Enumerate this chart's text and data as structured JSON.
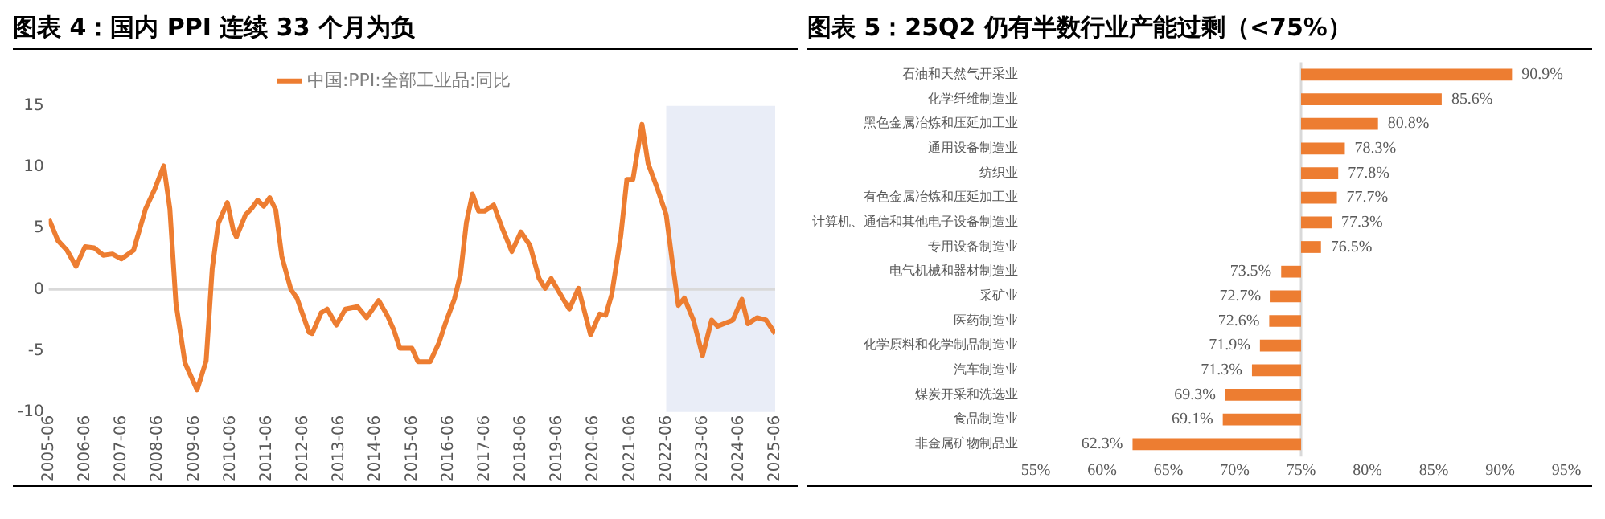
{
  "chart_data": [
    {
      "type": "line",
      "title": "图表 4：国内 PPI 连续 33 个月为负",
      "x": [
        "2005-06",
        "2005-09",
        "2005-12",
        "2006-03",
        "2006-06",
        "2006-09",
        "2006-12",
        "2007-03",
        "2007-06",
        "2007-10",
        "2008-02",
        "2008-05",
        "2008-08",
        "2008-10",
        "2008-12",
        "2009-03",
        "2009-07",
        "2009-10",
        "2009-12",
        "2010-02",
        "2010-05",
        "2010-07",
        "2010-08",
        "2010-11",
        "2011-01",
        "2011-03",
        "2011-05",
        "2011-07",
        "2011-09",
        "2011-11",
        "2012-02",
        "2012-04",
        "2012-08",
        "2012-09",
        "2012-12",
        "2013-02",
        "2013-05",
        "2013-08",
        "2013-12",
        "2014-03",
        "2014-07",
        "2014-10",
        "2014-12",
        "2015-02",
        "2015-06",
        "2015-08",
        "2015-12",
        "2016-03",
        "2016-05",
        "2016-08",
        "2016-10",
        "2016-12",
        "2017-02",
        "2017-04",
        "2017-06",
        "2017-09",
        "2017-12",
        "2018-03",
        "2018-06",
        "2018-09",
        "2018-12",
        "2019-02",
        "2019-04",
        "2019-08",
        "2019-10",
        "2020-01",
        "2020-05",
        "2020-08",
        "2020-10",
        "2020-12",
        "2021-03",
        "2021-05",
        "2021-07",
        "2021-10",
        "2021-12",
        "2022-03",
        "2022-06",
        "2022-08",
        "2022-10",
        "2022-12",
        "2023-03",
        "2023-06",
        "2023-09",
        "2023-11",
        "2024-02",
        "2024-04",
        "2024-07",
        "2024-09",
        "2024-12",
        "2025-03",
        "2025-06"
      ],
      "series": [
        {
          "name": "中国:PPI:全部工业品:同比",
          "color": "#ed7d31",
          "values": [
            5.8,
            4.0,
            3.2,
            1.9,
            3.5,
            3.4,
            2.8,
            2.9,
            2.5,
            3.2,
            6.6,
            8.2,
            10.1,
            6.6,
            -1.1,
            -6.0,
            -8.2,
            -5.8,
            1.7,
            5.4,
            7.1,
            4.8,
            4.3,
            6.1,
            6.6,
            7.3,
            6.8,
            7.5,
            6.5,
            2.7,
            0.0,
            -0.7,
            -3.5,
            -3.6,
            -1.9,
            -1.6,
            -2.9,
            -1.6,
            -1.4,
            -2.3,
            -0.9,
            -2.2,
            -3.3,
            -4.8,
            -4.8,
            -5.9,
            -5.9,
            -4.3,
            -2.8,
            -0.8,
            1.2,
            5.5,
            7.8,
            6.4,
            6.4,
            6.9,
            4.9,
            3.1,
            4.7,
            3.6,
            0.9,
            0.1,
            0.9,
            -0.8,
            -1.6,
            0.1,
            -3.7,
            -2.0,
            -2.1,
            -0.4,
            4.4,
            9.0,
            9.0,
            13.5,
            10.3,
            8.3,
            6.1,
            2.3,
            -1.3,
            -0.7,
            -2.5,
            -5.4,
            -2.5,
            -3.0,
            -2.7,
            -2.5,
            -0.8,
            -2.8,
            -2.3,
            -2.5,
            -3.6
          ]
        }
      ],
      "xlim": [
        "2005-06",
        "2025-06"
      ],
      "xticks": [
        "2005-06",
        "2006-06",
        "2007-06",
        "2008-06",
        "2009-06",
        "2010-06",
        "2011-06",
        "2012-06",
        "2013-06",
        "2014-06",
        "2015-06",
        "2016-06",
        "2017-06",
        "2018-06",
        "2019-06",
        "2020-06",
        "2021-06",
        "2022-06",
        "2023-06",
        "2024-06",
        "2025-06"
      ],
      "ylim": [
        -10,
        15
      ],
      "yticks": [
        -10,
        -5,
        0,
        5,
        10,
        15
      ],
      "bands": [
        {
          "axis": "x",
          "from": "2022-06",
          "to": "2025-06",
          "color": "#e9edf7"
        }
      ],
      "ref_lines": [
        {
          "axis": "y",
          "value": 0,
          "color": "#d9d9d9"
        }
      ],
      "legend": "top",
      "grid": false
    },
    {
      "type": "bar",
      "title": "图表 5：25Q2 仍有半数行业产能过剩（<75%）",
      "orientation": "horizontal",
      "categories": [
        "石油和天然气开采业",
        "化学纤维制造业",
        "黑色金属冶炼和压延加工业",
        "通用设备制造业",
        "纺织业",
        "有色金属冶炼和压延加工业",
        "计算机、通信和其他电子设备制造业",
        "专用设备制造业",
        "电气机械和器材制造业",
        "采矿业",
        "医药制造业",
        "化学原料和化学制品制造业",
        "汽车制造业",
        "煤炭开采和洗选业",
        "食品制造业",
        "非金属矿物制品业"
      ],
      "base": [
        75,
        75,
        75,
        75,
        75,
        75,
        75,
        75,
        75,
        75,
        75,
        75,
        75,
        75,
        75,
        75
      ],
      "values": [
        15.9,
        10.6,
        5.8,
        3.3,
        2.8,
        2.7,
        2.3,
        1.5,
        -1.5,
        -2.3,
        -2.4,
        -3.1,
        -3.7,
        -5.7,
        -5.9,
        -12.7
      ],
      "value_labels": [
        "90.9%",
        "85.6%",
        "80.8%",
        "78.3%",
        "77.8%",
        "77.7%",
        "77.3%",
        "76.5%",
        "73.5%",
        "72.7%",
        "72.6%",
        "71.9%",
        "71.3%",
        "69.3%",
        "69.1%",
        "62.3%"
      ],
      "color": "#ed7d31",
      "xlim": [
        55,
        95
      ],
      "xticks": [
        {
          "value": 55,
          "label": "55%"
        },
        {
          "value": 60,
          "label": "60%"
        },
        {
          "value": 65,
          "label": "65%"
        },
        {
          "value": 70,
          "label": "70%"
        },
        {
          "value": 75,
          "label": "75%"
        },
        {
          "value": 80,
          "label": "80%"
        },
        {
          "value": 85,
          "label": "85%"
        },
        {
          "value": 90,
          "label": "90%"
        },
        {
          "value": 95,
          "label": "95%"
        }
      ],
      "ref_lines": [
        {
          "axis": "x",
          "value": 75,
          "color": "#d9d9d9"
        }
      ],
      "legend": false,
      "grid": false
    }
  ]
}
